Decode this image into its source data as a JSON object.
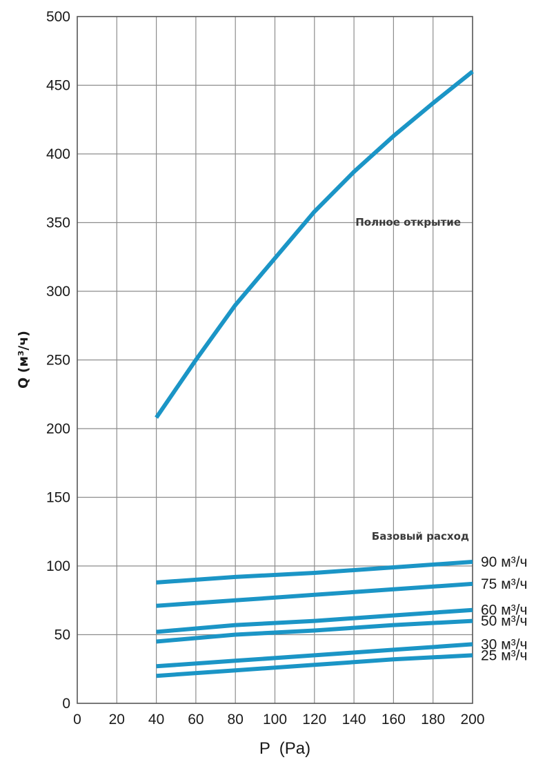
{
  "chart_data": {
    "type": "line",
    "xlabel": "P  (Pa)",
    "ylabel": "Q (м³/ч)",
    "xlim": [
      0,
      200
    ],
    "ylim": [
      0,
      500
    ],
    "xticks": [
      0,
      20,
      40,
      60,
      80,
      100,
      120,
      140,
      160,
      180,
      200
    ],
    "yticks": [
      0,
      50,
      100,
      150,
      200,
      250,
      300,
      350,
      400,
      450,
      500
    ],
    "grid": true,
    "line_color": "#1b95c6",
    "annotations": {
      "full_open": "Полное открытие",
      "base_flow": "Базовый расход"
    },
    "series": [
      {
        "name": "Полное открытие",
        "x": [
          40,
          60,
          80,
          100,
          120,
          140,
          160,
          180,
          200
        ],
        "y": [
          208,
          250,
          290,
          324,
          358,
          387,
          413,
          437,
          460
        ]
      },
      {
        "name": "90 м³/ч",
        "x": [
          40,
          80,
          120,
          160,
          200
        ],
        "y": [
          88,
          92,
          95,
          99,
          103
        ]
      },
      {
        "name": "75 м³/ч",
        "x": [
          40,
          80,
          120,
          160,
          200
        ],
        "y": [
          71,
          75,
          79,
          83,
          87
        ]
      },
      {
        "name": "60 м³/ч",
        "x": [
          40,
          80,
          120,
          160,
          200
        ],
        "y": [
          52,
          57,
          60,
          64,
          68
        ]
      },
      {
        "name": "50 м³/ч",
        "x": [
          40,
          80,
          120,
          160,
          200
        ],
        "y": [
          45,
          50,
          53,
          57,
          60
        ]
      },
      {
        "name": "30 м³/ч",
        "x": [
          40,
          80,
          120,
          160,
          200
        ],
        "y": [
          27,
          31,
          35,
          39,
          43
        ]
      },
      {
        "name": "25 м³/ч",
        "x": [
          40,
          80,
          120,
          160,
          200
        ],
        "y": [
          20,
          24,
          28,
          32,
          35
        ]
      }
    ]
  }
}
